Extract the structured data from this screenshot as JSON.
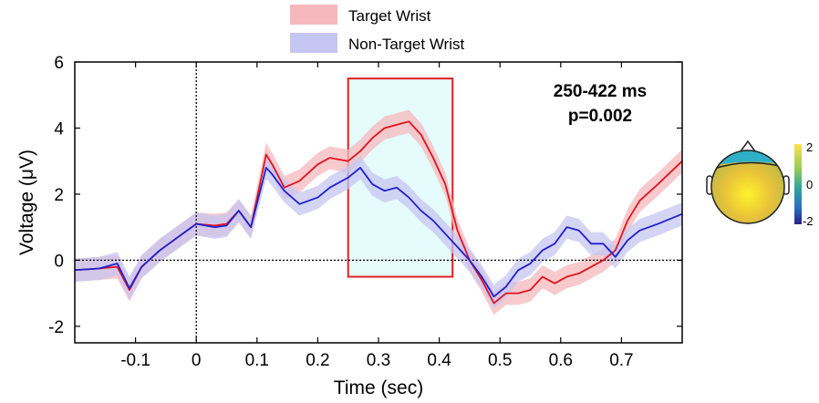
{
  "chart_data": {
    "type": "line",
    "xlabel": "Time (sec)",
    "ylabel": "Voltage (μV)",
    "xlim": [
      -0.2,
      0.8
    ],
    "ylim": [
      -2.5,
      6
    ],
    "xticks": [
      -0.1,
      0,
      0.1,
      0.2,
      0.3,
      0.4,
      0.5,
      0.6,
      0.7
    ],
    "xtick_labels": [
      "-0.1",
      "0",
      "0.1",
      "0.2",
      "0.3",
      "0.4",
      "0.5",
      "0.6",
      "0.7"
    ],
    "yticks": [
      -2,
      0,
      2,
      4,
      6
    ],
    "ytick_labels": [
      "-2",
      "0",
      "2",
      "4",
      "6"
    ],
    "reference_lines": {
      "x": 0,
      "y": 0
    },
    "legend": {
      "placement": "top-center"
    },
    "annotation": {
      "line1": "250-422 ms",
      "line2": "p=0.002"
    },
    "highlight_window": {
      "x_start": 0.25,
      "x_end": 0.422,
      "y_bottom": -0.5,
      "y_top": 5.5,
      "fill": "#e6fbfb",
      "edge": "#e02020"
    },
    "x": [
      -0.2,
      -0.16,
      -0.13,
      -0.11,
      -0.09,
      -0.06,
      -0.03,
      0,
      0.03,
      0.05,
      0.07,
      0.09,
      0.115,
      0.125,
      0.145,
      0.17,
      0.2,
      0.22,
      0.25,
      0.27,
      0.29,
      0.31,
      0.33,
      0.35,
      0.37,
      0.39,
      0.41,
      0.43,
      0.45,
      0.47,
      0.49,
      0.51,
      0.53,
      0.55,
      0.57,
      0.59,
      0.61,
      0.63,
      0.65,
      0.67,
      0.69,
      0.71,
      0.73,
      0.76,
      0.8
    ],
    "series": [
      {
        "name": "Target Wrist",
        "color": "#e0141e",
        "band_color": "#f6b8bc",
        "values": [
          -0.3,
          -0.25,
          -0.2,
          -0.9,
          -0.2,
          0.3,
          0.7,
          1.1,
          1.05,
          1.1,
          1.5,
          1.0,
          3.2,
          2.9,
          2.2,
          2.4,
          2.9,
          3.1,
          3.0,
          3.3,
          3.7,
          4.0,
          4.1,
          4.2,
          3.8,
          3.1,
          2.3,
          0.9,
          0.0,
          -0.6,
          -1.3,
          -1.0,
          -1.0,
          -0.9,
          -0.5,
          -0.7,
          -0.5,
          -0.4,
          -0.2,
          0.0,
          0.3,
          1.2,
          1.8,
          2.3,
          3.0
        ]
      },
      {
        "name": "Non-Target Wrist",
        "color": "#2020d0",
        "band_color": "#c6c6f2",
        "values": [
          -0.3,
          -0.25,
          -0.1,
          -0.85,
          -0.2,
          0.3,
          0.7,
          1.1,
          1.0,
          1.05,
          1.5,
          1.0,
          2.8,
          2.6,
          2.1,
          1.7,
          1.9,
          2.2,
          2.5,
          2.8,
          2.3,
          2.1,
          2.2,
          1.9,
          1.5,
          1.2,
          0.8,
          0.4,
          0.0,
          -0.5,
          -1.1,
          -0.8,
          -0.3,
          -0.1,
          0.3,
          0.5,
          1.0,
          0.9,
          0.5,
          0.5,
          0.1,
          0.6,
          0.9,
          1.1,
          1.4
        ]
      }
    ],
    "band_halfwidth": 0.35
  },
  "topomap": {
    "colorbar_ticks": [
      "2",
      "0",
      "-2"
    ],
    "colors": {
      "top": "#ffe04a",
      "mid": "#3aa88a",
      "bottom": "#2a1f8a",
      "head_top": "#30b0c8",
      "head_body": "#e8c23a"
    }
  }
}
